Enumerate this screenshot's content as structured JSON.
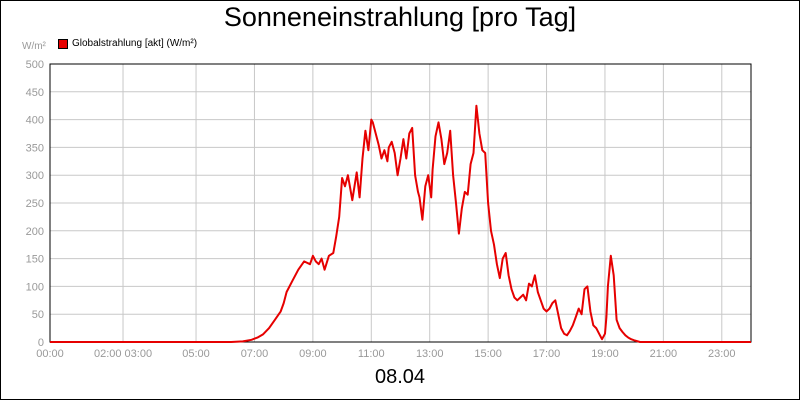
{
  "chart_data": {
    "type": "line",
    "title": "Sonneneinstrahlung [pro Tag]",
    "xlabel": "08.04",
    "ylabel": "W/m²",
    "ylim": [
      0,
      500
    ],
    "xlim": [
      0,
      24
    ],
    "grid": true,
    "legend_position": "top-left",
    "x_ticks": [
      {
        "value": 0,
        "label": "00:00"
      },
      {
        "value": 2.5,
        "label": "02:00 03:00"
      },
      {
        "value": 5,
        "label": "05:00"
      },
      {
        "value": 7,
        "label": "07:00"
      },
      {
        "value": 9,
        "label": "09:00"
      },
      {
        "value": 11,
        "label": "11:00"
      },
      {
        "value": 13,
        "label": "13:00"
      },
      {
        "value": 15,
        "label": "15:00"
      },
      {
        "value": 17,
        "label": "17:00"
      },
      {
        "value": 19,
        "label": "19:00"
      },
      {
        "value": 21,
        "label": "21:00"
      },
      {
        "value": 23,
        "label": "23:00"
      }
    ],
    "y_ticks": [
      0,
      50,
      100,
      150,
      200,
      250,
      300,
      350,
      400,
      450,
      500
    ],
    "series": [
      {
        "name": "Globalstrahlung [akt] (W/m²)",
        "color": "#e60000",
        "x": [
          0,
          6.2,
          6.6,
          6.9,
          7.1,
          7.3,
          7.5,
          7.7,
          7.9,
          8.0,
          8.1,
          8.3,
          8.5,
          8.7,
          8.9,
          9.0,
          9.1,
          9.2,
          9.3,
          9.4,
          9.55,
          9.7,
          9.8,
          9.9,
          10.0,
          10.1,
          10.2,
          10.35,
          10.5,
          10.6,
          10.7,
          10.8,
          10.9,
          11.0,
          11.05,
          11.15,
          11.25,
          11.35,
          11.45,
          11.55,
          11.6,
          11.7,
          11.8,
          11.9,
          12.0,
          12.1,
          12.2,
          12.3,
          12.4,
          12.5,
          12.6,
          12.65,
          12.75,
          12.85,
          12.95,
          13.05,
          13.1,
          13.2,
          13.3,
          13.4,
          13.5,
          13.6,
          13.7,
          13.8,
          13.9,
          14.0,
          14.1,
          14.2,
          14.3,
          14.4,
          14.5,
          14.6,
          14.7,
          14.8,
          14.9,
          15.0,
          15.1,
          15.2,
          15.3,
          15.4,
          15.5,
          15.6,
          15.7,
          15.8,
          15.9,
          16.0,
          16.1,
          16.2,
          16.3,
          16.4,
          16.5,
          16.6,
          16.7,
          16.8,
          16.9,
          17.0,
          17.1,
          17.2,
          17.3,
          17.4,
          17.5,
          17.6,
          17.7,
          17.8,
          17.9,
          18.0,
          18.1,
          18.2,
          18.3,
          18.4,
          18.5,
          18.6,
          18.7,
          18.8,
          18.9,
          19.0,
          19.05,
          19.1,
          19.2,
          19.3,
          19.4,
          19.5,
          19.6,
          19.7,
          19.8,
          19.9,
          20.0,
          20.2,
          24
        ],
        "y": [
          0,
          0,
          1,
          4,
          8,
          14,
          25,
          40,
          55,
          70,
          90,
          110,
          130,
          145,
          140,
          155,
          145,
          140,
          150,
          130,
          155,
          160,
          190,
          225,
          295,
          280,
          300,
          255,
          305,
          260,
          330,
          380,
          345,
          400,
          395,
          375,
          355,
          330,
          345,
          325,
          350,
          360,
          340,
          300,
          330,
          365,
          330,
          375,
          385,
          300,
          270,
          260,
          220,
          280,
          300,
          260,
          310,
          370,
          395,
          365,
          320,
          340,
          380,
          300,
          250,
          195,
          240,
          270,
          265,
          320,
          340,
          425,
          375,
          345,
          340,
          250,
          200,
          175,
          140,
          115,
          150,
          160,
          120,
          95,
          80,
          75,
          80,
          85,
          75,
          105,
          100,
          120,
          90,
          75,
          60,
          55,
          60,
          70,
          75,
          50,
          25,
          15,
          12,
          20,
          30,
          45,
          60,
          50,
          95,
          100,
          55,
          30,
          25,
          15,
          5,
          15,
          45,
          100,
          155,
          120,
          40,
          25,
          18,
          12,
          8,
          5,
          3,
          0,
          0
        ]
      }
    ]
  }
}
